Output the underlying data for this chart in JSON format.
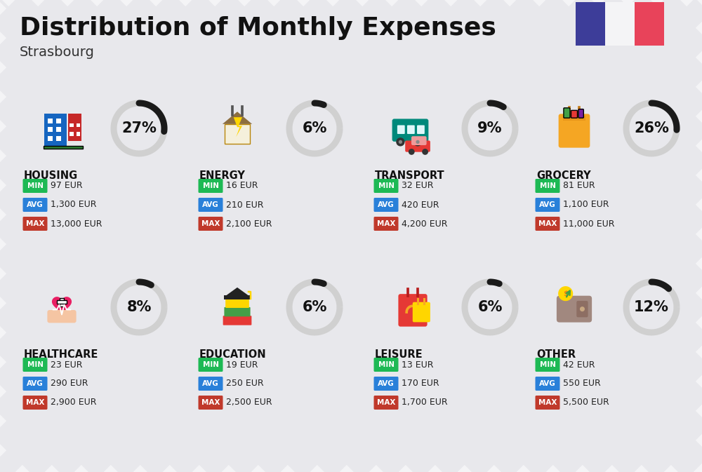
{
  "title": "Distribution of Monthly Expenses",
  "subtitle": "Strasbourg",
  "background_color": "#f4f4f6",
  "categories": [
    {
      "name": "HOUSING",
      "pct": 27,
      "min": "97 EUR",
      "avg": "1,300 EUR",
      "max": "13,000 EUR",
      "row": 0,
      "col": 0
    },
    {
      "name": "ENERGY",
      "pct": 6,
      "min": "16 EUR",
      "avg": "210 EUR",
      "max": "2,100 EUR",
      "row": 0,
      "col": 1
    },
    {
      "name": "TRANSPORT",
      "pct": 9,
      "min": "32 EUR",
      "avg": "420 EUR",
      "max": "4,200 EUR",
      "row": 0,
      "col": 2
    },
    {
      "name": "GROCERY",
      "pct": 26,
      "min": "81 EUR",
      "avg": "1,100 EUR",
      "max": "11,000 EUR",
      "row": 0,
      "col": 3
    },
    {
      "name": "HEALTHCARE",
      "pct": 8,
      "min": "23 EUR",
      "avg": "290 EUR",
      "max": "2,900 EUR",
      "row": 1,
      "col": 0
    },
    {
      "name": "EDUCATION",
      "pct": 6,
      "min": "19 EUR",
      "avg": "250 EUR",
      "max": "2,500 EUR",
      "row": 1,
      "col": 1
    },
    {
      "name": "LEISURE",
      "pct": 6,
      "min": "13 EUR",
      "avg": "170 EUR",
      "max": "1,700 EUR",
      "row": 1,
      "col": 2
    },
    {
      "name": "OTHER",
      "pct": 12,
      "min": "42 EUR",
      "avg": "550 EUR",
      "max": "5,500 EUR",
      "row": 1,
      "col": 3
    }
  ],
  "min_color": "#1db954",
  "avg_color": "#2980d9",
  "max_color": "#c0392b",
  "arc_dark": "#1a1a1a",
  "arc_light": "#d0d0d0",
  "title_fontsize": 26,
  "subtitle_fontsize": 14,
  "cat_fontsize": 10.5,
  "pct_fontsize": 15,
  "badge_fontsize": 7.5,
  "val_fontsize": 9,
  "flag_blue": "#3d3d99",
  "flag_white": "#f4f4f6",
  "flag_red": "#e8435a",
  "stripe_color": "#e8e8ec",
  "stripe_alpha": 1.0
}
